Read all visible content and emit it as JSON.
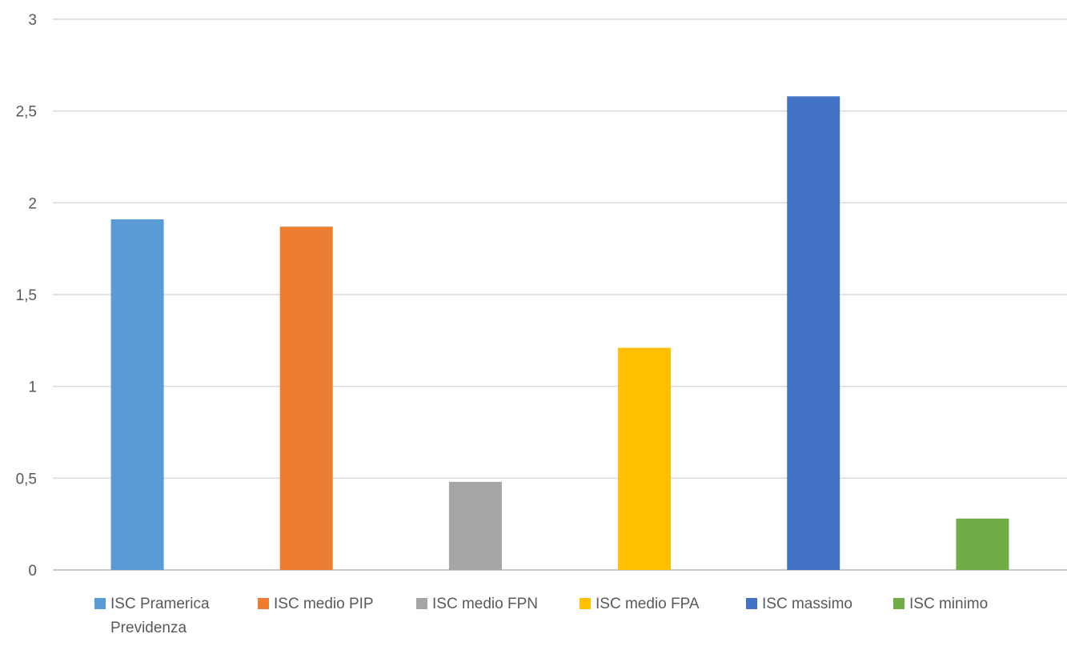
{
  "chart_data": {
    "type": "bar",
    "categories": [
      "ISC Pramerica Previdenza",
      "ISC medio PIP",
      "ISC medio FPN",
      "ISC medio FPA",
      "ISC massimo",
      "ISC minimo"
    ],
    "values": [
      1.91,
      1.87,
      0.48,
      1.21,
      2.58,
      0.28
    ],
    "colors": [
      "#5b9bd5",
      "#ed7d31",
      "#a5a5a5",
      "#ffc000",
      "#4472c4",
      "#70ad47"
    ],
    "legend": [
      {
        "lines": [
          "ISC Pramerica",
          "Previdenza"
        ]
      },
      {
        "lines": [
          "ISC medio PIP"
        ]
      },
      {
        "lines": [
          "ISC medio FPN"
        ]
      },
      {
        "lines": [
          "ISC medio FPA"
        ]
      },
      {
        "lines": [
          "ISC massimo"
        ]
      },
      {
        "lines": [
          "ISC minimo"
        ]
      }
    ],
    "y_ticks": [
      "0",
      "0,5",
      "1",
      "1,5",
      "2",
      "2,5",
      "3"
    ],
    "ylim": [
      0,
      3
    ],
    "grid": true,
    "legend_position": "bottom",
    "title": "",
    "xlabel": "",
    "ylabel": ""
  }
}
